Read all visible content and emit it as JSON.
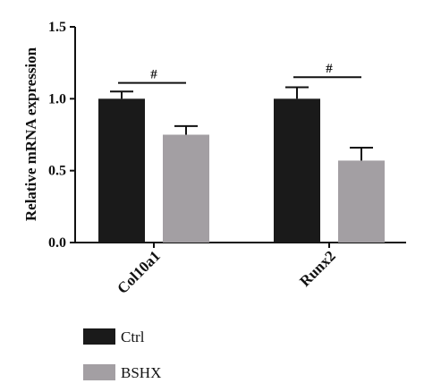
{
  "chart_data": {
    "type": "bar",
    "ylabel": "Relative mRNA expression",
    "ylim": [
      0,
      1.5
    ],
    "yticks": [
      0.0,
      0.5,
      1.0,
      1.5
    ],
    "ytick_labels": [
      "0.0",
      "0.5",
      "1.0",
      "1.5"
    ],
    "categories": [
      "Col10a1",
      "Runx2"
    ],
    "series": [
      {
        "name": "Ctrl",
        "color": "#1a1a1a",
        "values": [
          1.0,
          1.0
        ],
        "errors": [
          0.05,
          0.08
        ]
      },
      {
        "name": "BSHX",
        "color": "#a39fa3",
        "values": [
          0.75,
          0.57
        ],
        "errors": [
          0.06,
          0.09
        ]
      }
    ],
    "significance": [
      {
        "category": 0,
        "label": "#",
        "y": 1.11
      },
      {
        "category": 1,
        "label": "#",
        "y": 1.15
      }
    ],
    "legend": {
      "placement": "bottom-left"
    },
    "grid": false
  }
}
